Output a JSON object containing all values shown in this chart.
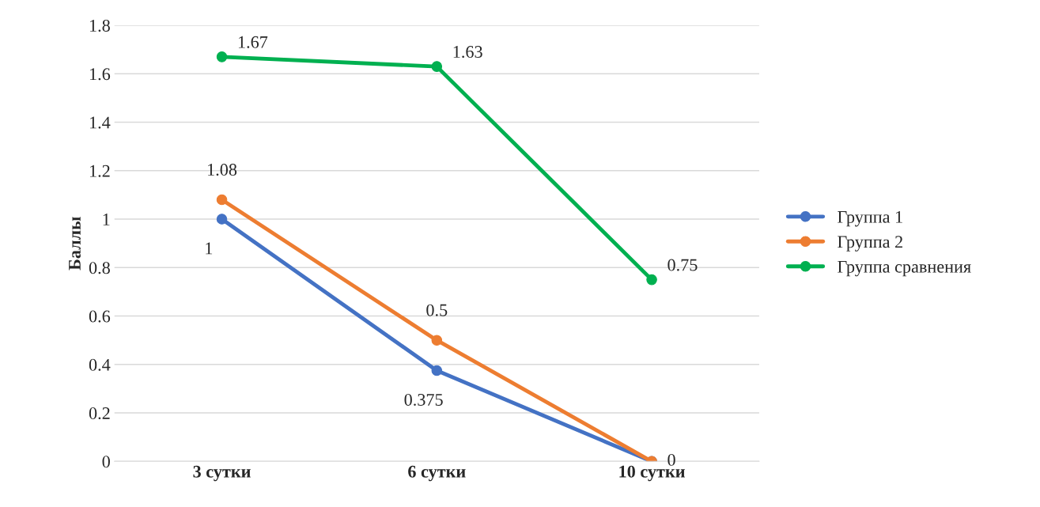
{
  "chart_data": {
    "type": "line",
    "ylabel": "Баллы",
    "categories": [
      "3 сутки",
      "6 сутки",
      "10 сутки"
    ],
    "series": [
      {
        "name": "Группа 1",
        "color": "#4472c4",
        "values": [
          1,
          0.375,
          0
        ],
        "value_labels": [
          "1",
          "0.375",
          "0"
        ]
      },
      {
        "name": "Группа 2",
        "color": "#ed7d31",
        "values": [
          1.08,
          0.5,
          0
        ],
        "value_labels": [
          "1.08",
          "0.5",
          null
        ]
      },
      {
        "name": "Группа сравнения",
        "color": "#00b050",
        "values": [
          1.67,
          1.63,
          0.75
        ],
        "value_labels": [
          "1.67",
          "1.63",
          "0.75"
        ]
      }
    ],
    "ylim": [
      0,
      1.8
    ],
    "yticks": [
      0,
      0.2,
      0.4,
      0.6,
      0.8,
      1,
      1.2,
      1.4,
      1.6,
      1.8
    ],
    "grid": "y",
    "legend": "right",
    "marker": "circle",
    "line_style": "solid"
  }
}
